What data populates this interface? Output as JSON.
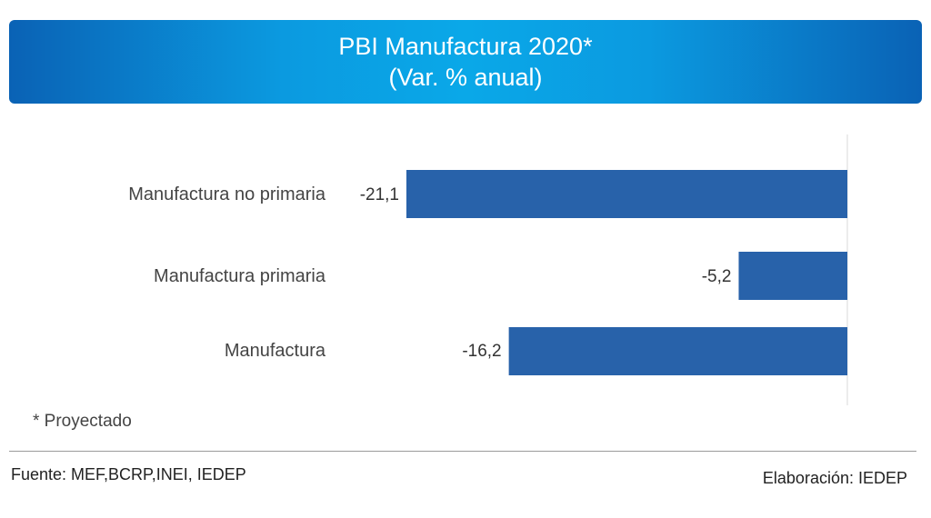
{
  "chart_data": {
    "type": "bar",
    "orientation": "horizontal",
    "title": "PBI Manufactura 2020*",
    "subtitle": "(Var. % anual)",
    "categories": [
      "Manufactura no primaria",
      "Manufactura primaria",
      "Manufactura"
    ],
    "values": [
      -21.1,
      -5.2,
      -16.2
    ],
    "value_labels": [
      "-21,1",
      "-5,2",
      "-16,2"
    ],
    "xlim": [
      -21.1,
      0
    ],
    "grid": false,
    "bar_color": "#2862aa"
  },
  "footnote": "* Proyectado",
  "source": "Fuente: MEF,BCRP,INEI, IEDEP",
  "credit": "Elaboración: IEDEP"
}
